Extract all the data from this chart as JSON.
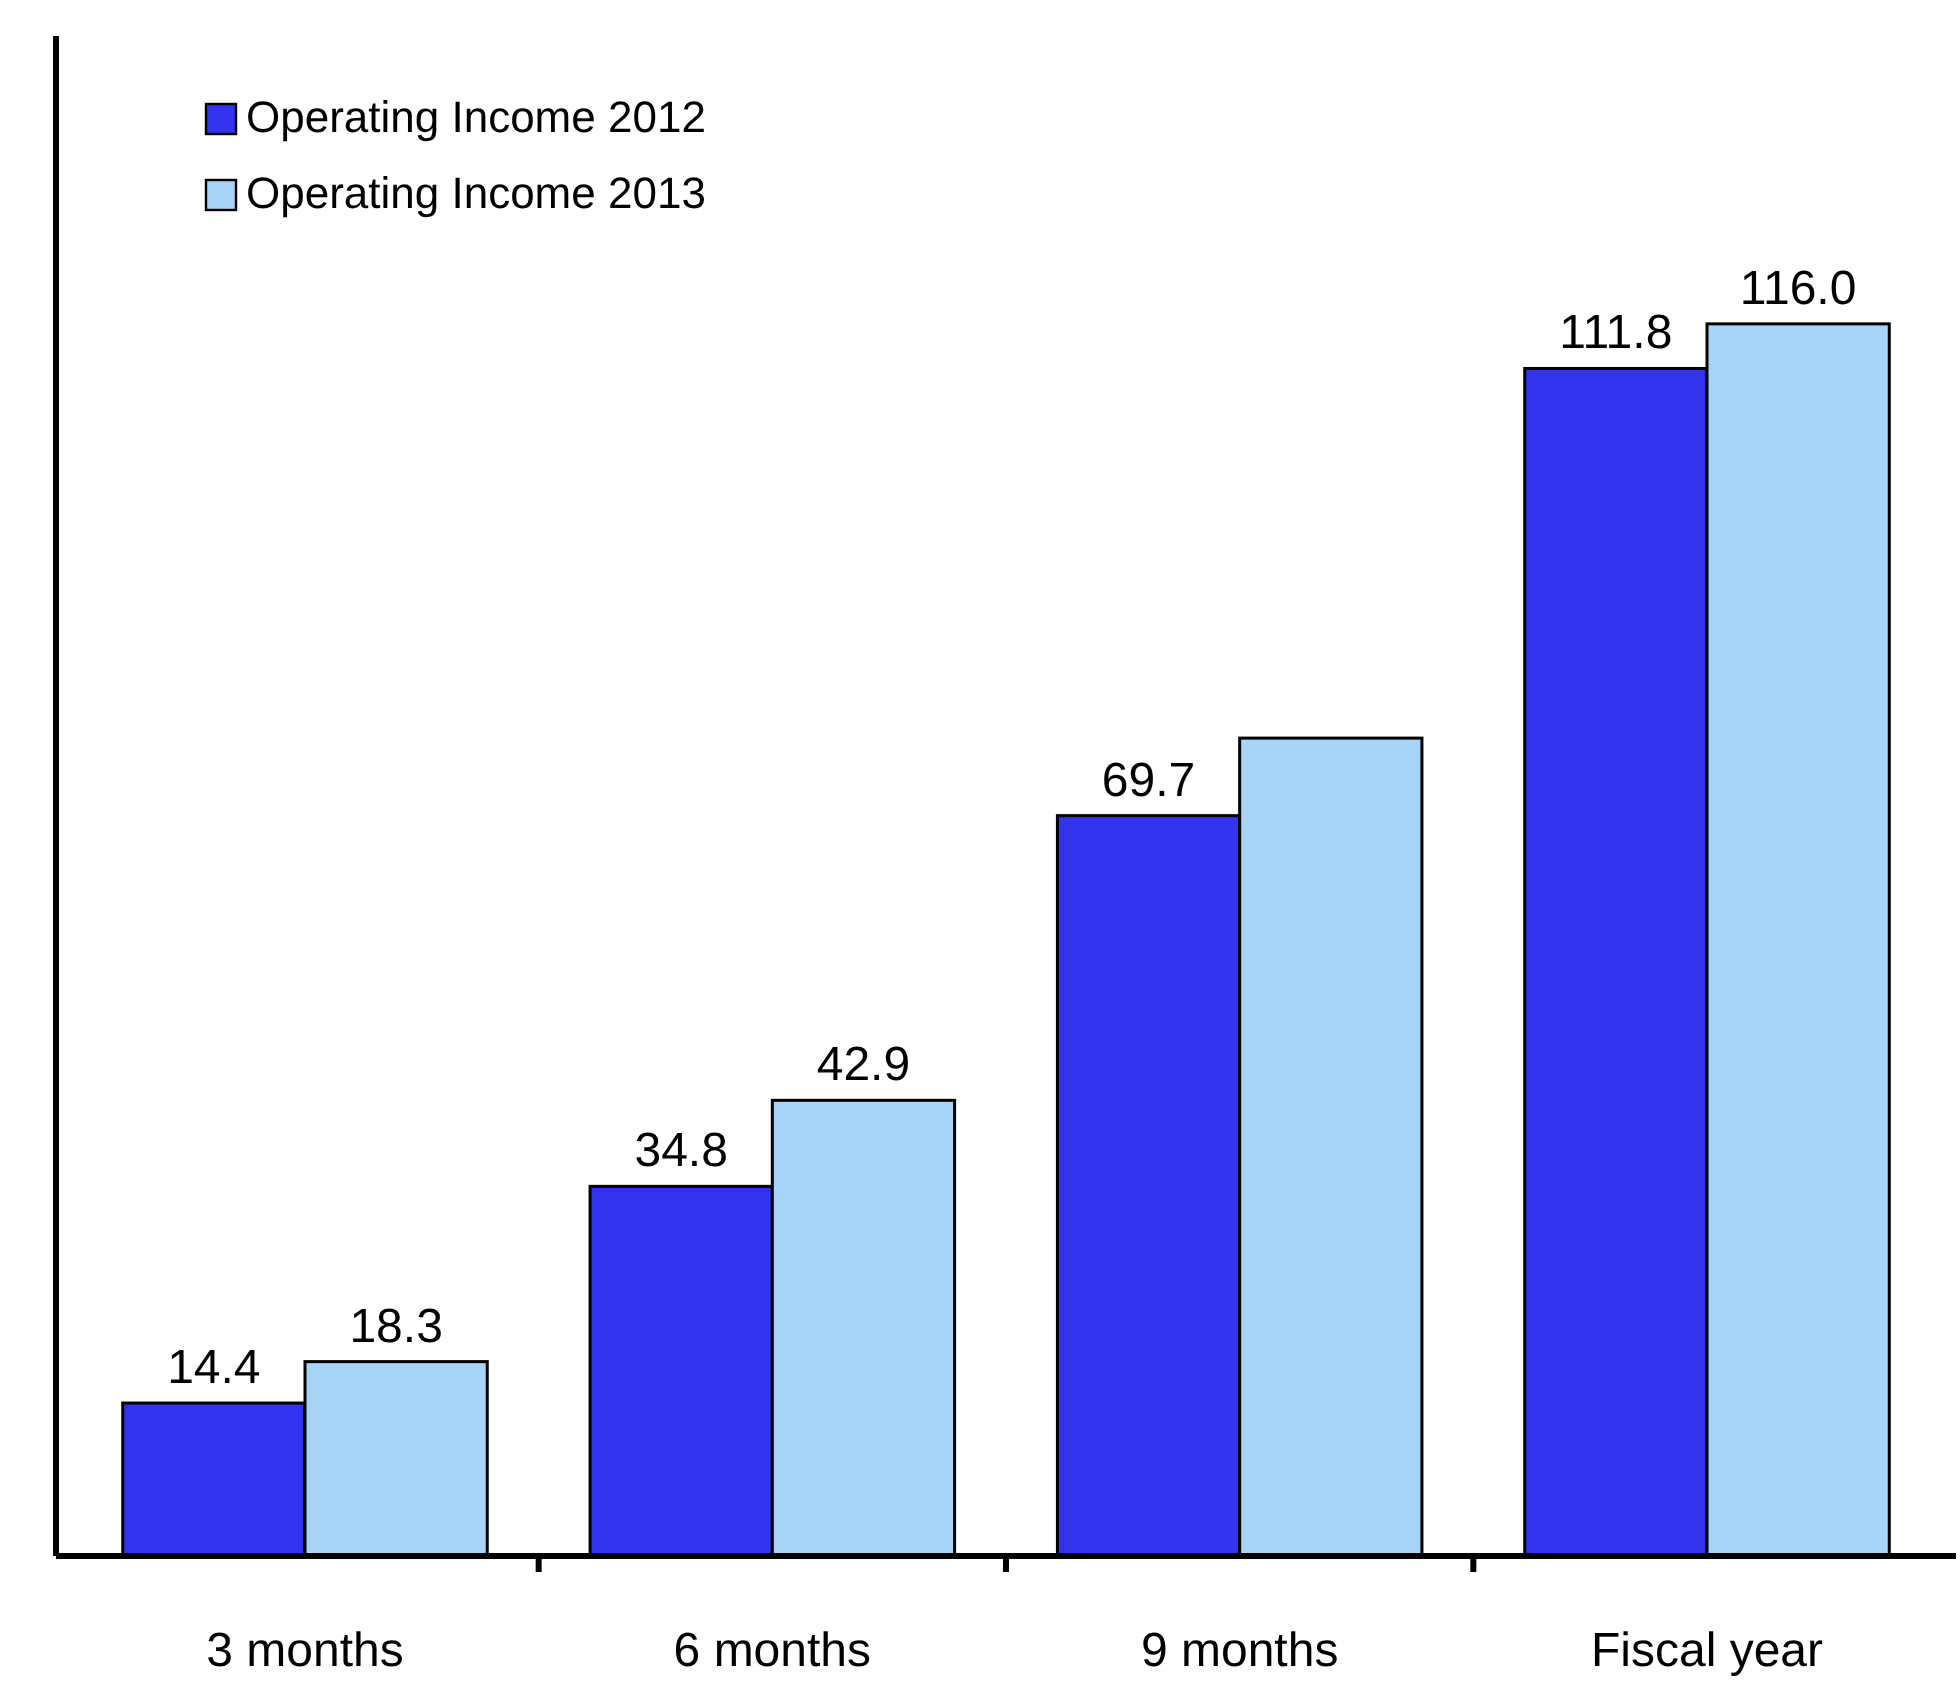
{
  "chart_data": {
    "type": "bar",
    "categories": [
      "3 months",
      "6 months",
      "9 months",
      "Fiscal year"
    ],
    "series": [
      {
        "name": "Operating Income 2012",
        "color": "#3333ee",
        "values": [
          14.4,
          34.8,
          69.7,
          111.8
        ],
        "value_labels": [
          "14.4",
          "34.8",
          "69.7",
          "111.8"
        ]
      },
      {
        "name": "Operating Income 2013",
        "color": "#a8d4f8",
        "values": [
          18.3,
          42.9,
          77.0,
          116.0
        ],
        "value_labels": [
          "18.3",
          "42.9",
          null,
          "116.0"
        ]
      }
    ],
    "legend": "top left"
  }
}
